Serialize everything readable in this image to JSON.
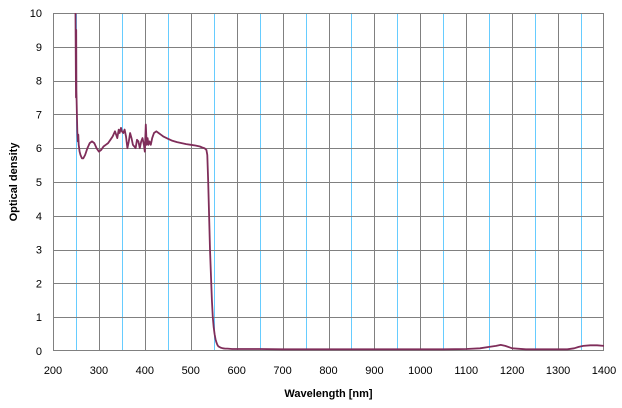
{
  "chart_data": {
    "type": "line",
    "title": "",
    "xlabel": "Wavelength [nm]",
    "ylabel": "Optical density",
    "xlim": [
      200,
      1400
    ],
    "ylim": [
      0,
      10
    ],
    "x_ticks": [
      200,
      300,
      400,
      500,
      600,
      700,
      800,
      900,
      1000,
      1100,
      1200,
      1300,
      1400
    ],
    "y_ticks": [
      0,
      1,
      2,
      3,
      4,
      5,
      6,
      7,
      8,
      9,
      10
    ],
    "grid": true,
    "grid_color_major": "#808080",
    "grid_color_minor": "#66ccff",
    "line_color": "#7f2d5a",
    "series": [
      {
        "x": [
          248,
          249,
          249.5,
          250,
          250.5,
          251,
          252,
          253,
          254,
          255,
          256,
          258,
          260,
          263,
          266,
          270,
          275,
          280,
          285,
          290,
          295,
          300,
          305,
          310,
          315,
          320,
          325,
          330,
          335,
          340,
          343,
          345,
          348,
          350,
          353,
          356,
          359,
          362,
          365,
          368,
          371,
          374,
          377,
          380,
          383,
          386,
          389,
          392,
          395,
          398,
          400,
          402,
          404,
          406,
          408,
          410,
          413,
          416,
          420,
          425,
          430,
          435,
          440,
          450,
          460,
          470,
          480,
          490,
          500,
          510,
          520,
          525,
          530,
          534,
          536,
          538,
          540,
          542,
          544,
          546,
          548,
          550,
          552,
          554,
          556,
          558,
          560,
          565,
          570,
          575,
          580,
          590,
          600,
          620,
          650,
          700,
          750,
          800,
          850,
          900,
          950,
          1000,
          1050,
          1100,
          1130,
          1150,
          1165,
          1175,
          1185,
          1200,
          1230,
          1280,
          1320,
          1335,
          1345,
          1355,
          1370,
          1385,
          1400
        ],
        "y": [
          10,
          10,
          9,
          7.5,
          9.5,
          7.7,
          7,
          6.5,
          6.2,
          6.4,
          6.1,
          5.9,
          5.8,
          5.7,
          5.7,
          5.8,
          6.0,
          6.15,
          6.2,
          6.15,
          6.0,
          5.9,
          5.95,
          6.05,
          6.1,
          6.15,
          6.25,
          6.35,
          6.5,
          6.3,
          6.55,
          6.45,
          6.6,
          6.5,
          6.45,
          6.55,
          6.35,
          6.0,
          6.2,
          6.45,
          6.3,
          6.1,
          6.05,
          6.0,
          6.25,
          6.2,
          6.0,
          6.2,
          6.3,
          6.1,
          5.9,
          6.7,
          6.1,
          6.3,
          6.1,
          6.2,
          6.1,
          6.3,
          6.45,
          6.5,
          6.45,
          6.4,
          6.35,
          6.28,
          6.22,
          6.18,
          6.15,
          6.12,
          6.1,
          6.08,
          6.05,
          6.02,
          6.0,
          5.95,
          5.8,
          5.0,
          4.0,
          3.0,
          2.2,
          1.5,
          1.0,
          0.7,
          0.5,
          0.35,
          0.25,
          0.18,
          0.14,
          0.1,
          0.08,
          0.07,
          0.07,
          0.06,
          0.06,
          0.06,
          0.06,
          0.05,
          0.05,
          0.05,
          0.05,
          0.05,
          0.05,
          0.05,
          0.05,
          0.06,
          0.08,
          0.12,
          0.15,
          0.18,
          0.15,
          0.08,
          0.05,
          0.05,
          0.05,
          0.08,
          0.12,
          0.15,
          0.17,
          0.17,
          0.15
        ]
      }
    ]
  }
}
